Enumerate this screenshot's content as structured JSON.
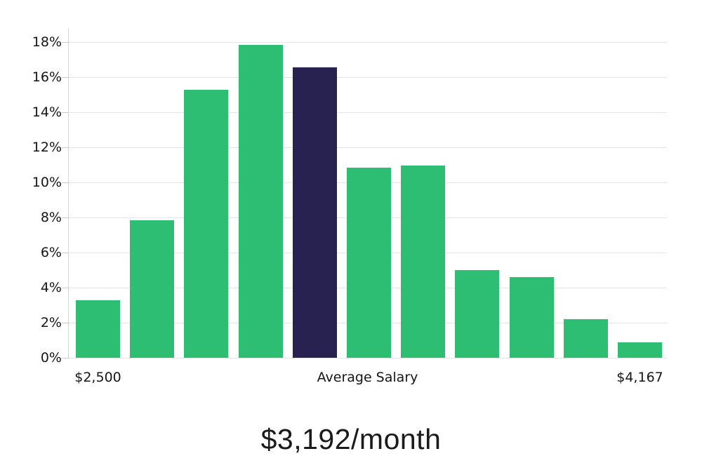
{
  "chart_data": {
    "type": "bar",
    "title": "$3,192/month",
    "subtitle": "",
    "xlabel": "",
    "ylabel": "",
    "values": [
      3.3,
      7.85,
      15.3,
      17.85,
      16.55,
      10.85,
      10.95,
      5.0,
      4.6,
      2.2,
      0.9
    ],
    "highlight_index": 4,
    "bar_color": "#2dbd73",
    "highlight_color": "#282251",
    "ylim": [
      0,
      18
    ],
    "y_tick_values": [
      0,
      2,
      4,
      6,
      8,
      10,
      12,
      14,
      16,
      18
    ],
    "y_tick_labels": [
      "0%",
      "2%",
      "4%",
      "6%",
      "8%",
      "10%",
      "12%",
      "14%",
      "16%",
      "18%"
    ],
    "x_tick_labels": [
      {
        "text": "$2,500",
        "anchor_bar": 0,
        "anchor_center": false
      },
      {
        "text": "Average Salary",
        "anchor_bar": null,
        "anchor_center": true
      },
      {
        "text": "$4,167",
        "anchor_bar": 10,
        "anchor_center": false
      }
    ],
    "grid": true,
    "legend": "none"
  }
}
